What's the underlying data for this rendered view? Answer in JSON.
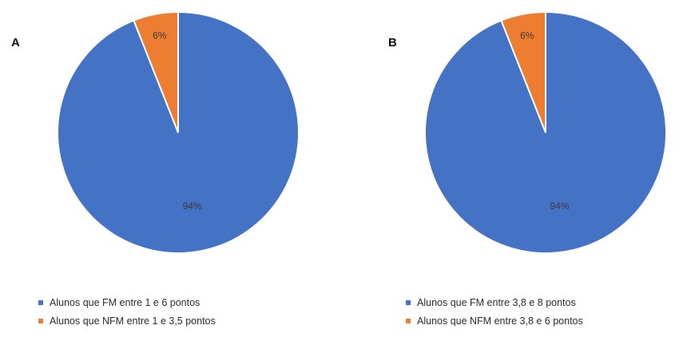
{
  "chart_data": [
    {
      "type": "pie",
      "panel_label": "A",
      "unit": "%",
      "slices": [
        {
          "label": "Alunos que FM entre 1 e 6 pontos",
          "value": 94,
          "value_label": "94%",
          "color": "#4472C4"
        },
        {
          "label": "Alunos que NFM entre 1 e 3,5 pontos",
          "value": 6,
          "value_label": "6%",
          "color": "#ED7D31"
        }
      ],
      "legend_position": "bottom"
    },
    {
      "type": "pie",
      "panel_label": "B",
      "unit": "%",
      "slices": [
        {
          "label": "Alunos que FM entre 3,8 e 8 pontos",
          "value": 94,
          "value_label": "94%",
          "color": "#4472C4"
        },
        {
          "label": "Alunos que NFM entre 3,8 e 6 pontos",
          "value": 6,
          "value_label": "6%",
          "color": "#ED7D31"
        }
      ],
      "legend_position": "bottom"
    }
  ]
}
